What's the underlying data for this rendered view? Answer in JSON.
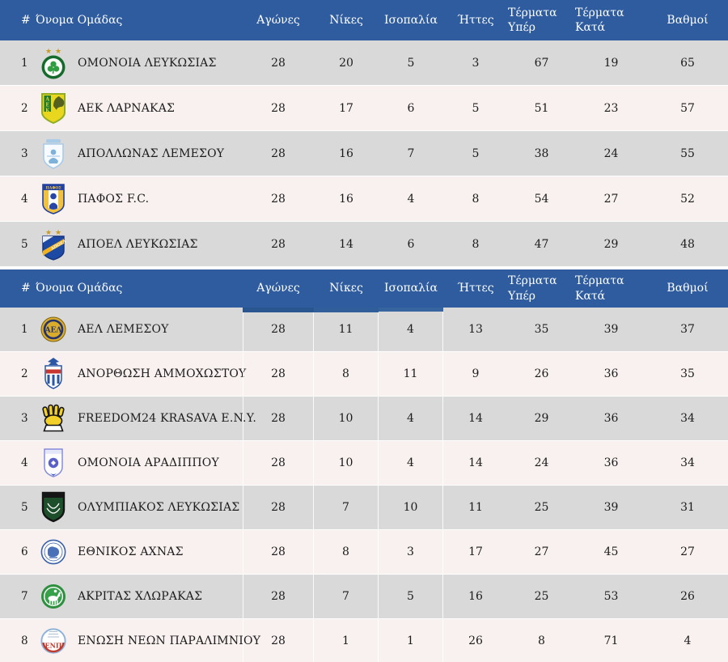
{
  "colors": {
    "header_bg": "#2e5c9e",
    "header_text": "#ffffff",
    "row_gray": "#d9d9d9",
    "row_pink": "#f8f1ef",
    "body_text": "#1c1c1c"
  },
  "columns": [
    {
      "key": "rank",
      "label": "#"
    },
    {
      "key": "team",
      "label": "Όνομα Ομάδας"
    },
    {
      "key": "games",
      "label": "Αγώνες"
    },
    {
      "key": "wins",
      "label": "Νίκες"
    },
    {
      "key": "draws",
      "label": "Ισοπαλία"
    },
    {
      "key": "losses",
      "label": "Ήττες"
    },
    {
      "key": "goals_for",
      "label": "Τέρματα Υπέρ"
    },
    {
      "key": "goals_against",
      "label": "Τέρματα Κατά"
    },
    {
      "key": "points",
      "label": "Βαθμοί"
    }
  ],
  "tables": [
    {
      "name": "top-group",
      "rows": [
        {
          "rank": "1",
          "team": "ΟΜΟΝΟΙΑ ΛΕΥΚΩΣΙΑΣ",
          "logo": "omonoia-nicosia",
          "stats": [
            "28",
            "20",
            "5",
            "3",
            "67",
            "19",
            "65"
          ]
        },
        {
          "rank": "2",
          "team": "ΑΕΚ ΛΑΡΝΑΚΑΣ",
          "logo": "aek-larnaca",
          "stats": [
            "28",
            "17",
            "6",
            "5",
            "51",
            "23",
            "57"
          ]
        },
        {
          "rank": "3",
          "team": "ΑΠΟΛΛΩΝΑΣ ΛΕΜΕΣΟΥ",
          "logo": "apollon-limassol",
          "stats": [
            "28",
            "16",
            "7",
            "5",
            "38",
            "24",
            "55"
          ]
        },
        {
          "rank": "4",
          "team": "ΠΑΦΟΣ F.C.",
          "logo": "pafos-fc",
          "stats": [
            "28",
            "16",
            "4",
            "8",
            "54",
            "27",
            "52"
          ]
        },
        {
          "rank": "5",
          "team": "ΑΠΟΕΛ ΛΕΥΚΩΣΙΑΣ",
          "logo": "apoel-nicosia",
          "stats": [
            "28",
            "14",
            "6",
            "8",
            "47",
            "29",
            "48"
          ]
        }
      ]
    },
    {
      "name": "bottom-group",
      "rows": [
        {
          "rank": "1",
          "team": "ΑΕΛ ΛΕΜΕΣΟΥ",
          "logo": "ael-limassol",
          "stats": [
            "28",
            "11",
            "4",
            "13",
            "35",
            "39",
            "37"
          ]
        },
        {
          "rank": "2",
          "team": "ΑΝΟΡΘΩΣΗ ΑΜΜΟΧΩΣΤΟΥ",
          "logo": "anorthosis",
          "stats": [
            "28",
            "8",
            "11",
            "9",
            "26",
            "36",
            "35"
          ]
        },
        {
          "rank": "3",
          "team": "FREEDOM24 KRASAVA E.N.Y.",
          "logo": "krasava-eny",
          "stats": [
            "28",
            "10",
            "4",
            "14",
            "29",
            "36",
            "34"
          ]
        },
        {
          "rank": "4",
          "team": "ΟΜΟΝΟΙΑ ΑΡΑΔΙΠΠΟΥ",
          "logo": "omonoia-aradippou",
          "stats": [
            "28",
            "10",
            "4",
            "14",
            "24",
            "36",
            "34"
          ]
        },
        {
          "rank": "5",
          "team": "ΟΛΥΜΠΙΑΚΟΣ ΛΕΥΚΩΣΙΑΣ",
          "logo": "olympiakos-nicosia",
          "stats": [
            "28",
            "7",
            "10",
            "11",
            "25",
            "39",
            "31"
          ]
        },
        {
          "rank": "6",
          "team": "ΕΘΝΙΚΟΣ ΑΧΝΑΣ",
          "logo": "ethnikos-achna",
          "stats": [
            "28",
            "8",
            "3",
            "17",
            "27",
            "45",
            "27"
          ]
        },
        {
          "rank": "7",
          "team": "ΑΚΡΙΤΑΣ ΧΛΩΡΑΚΑΣ",
          "logo": "akritas-chlorakas",
          "stats": [
            "28",
            "7",
            "5",
            "16",
            "25",
            "53",
            "26"
          ]
        },
        {
          "rank": "8",
          "team": "ΕΝΩΣΗ ΝΕΩΝ ΠΑΡΑΛΙΜΝΙΟΥ",
          "logo": "enp-paralimni",
          "stats": [
            "28",
            "1",
            "1",
            "26",
            "8",
            "71",
            "4"
          ]
        }
      ]
    }
  ]
}
